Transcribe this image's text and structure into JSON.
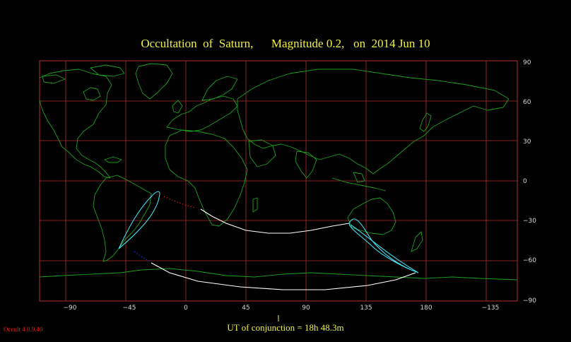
{
  "title": "Occultation  of  Saturn,      Magnitude 0.2,   on  2014 Jun 10",
  "x_ticks": [
    "−90",
    "−45",
    "0",
    "45",
    "90",
    "135",
    "180",
    "−135"
  ],
  "y_ticks": [
    "90",
    "60",
    "30",
    "0",
    "−30",
    "−60",
    "−90"
  ],
  "ut_label": "UT of conjunction = 18h 48.3m",
  "version": "Occult 4.0.9.40",
  "colors": {
    "title": "#f0f040",
    "grid": "#b03030",
    "coast": "#1ea01e",
    "path": "#ffffff",
    "limit_curve": "#40e0f0",
    "dotted_red": "#e02020",
    "dotted_blue": "#3030ff"
  },
  "map": {
    "projection": "equirectangular",
    "lon_center": 0,
    "lat_range": [
      -90,
      90
    ],
    "grid_interval_deg": 30
  }
}
